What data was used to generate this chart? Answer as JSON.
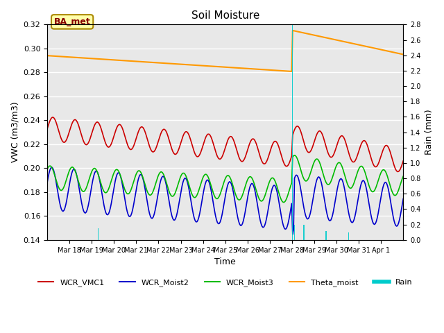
{
  "title": "Soil Moisture",
  "ylabel_left": "VWC (m3/m3)",
  "ylabel_right": "Rain (mm)",
  "xlabel": "Time",
  "annotation": "BA_met",
  "ylim_left": [
    0.14,
    0.32
  ],
  "ylim_right": [
    0.0,
    2.8
  ],
  "yticks_left": [
    0.14,
    0.16,
    0.18,
    0.2,
    0.22,
    0.24,
    0.26,
    0.28,
    0.3,
    0.32
  ],
  "yticks_right": [
    0.0,
    0.2,
    0.4,
    0.6,
    0.8,
    1.0,
    1.2,
    1.4,
    1.6,
    1.8,
    2.0,
    2.2,
    2.4,
    2.6,
    2.8
  ],
  "xtick_positions": [
    1,
    2,
    3,
    4,
    5,
    6,
    7,
    8,
    9,
    10,
    11,
    12,
    13,
    14,
    15
  ],
  "xtick_labels": [
    "Mar 18",
    "Mar 19",
    "Mar 20",
    "Mar 21",
    "Mar 22",
    "Mar 23",
    "Mar 24",
    "Mar 25",
    "Mar 26",
    "Mar 27",
    "Mar 28",
    "Mar 29",
    "Mar 30",
    "Mar 31",
    "Apr 1"
  ],
  "colors": {
    "WCR_VMC1": "#cc0000",
    "WCR_Moist2": "#0000cc",
    "WCR_Moist3": "#00bb00",
    "Theta_moist": "#ff9900",
    "Rain": "#00cccc",
    "background": "#e8e8e8"
  },
  "legend_labels": [
    "WCR_VMC1",
    "WCR_Moist2",
    "WCR_Moist3",
    "Theta_moist",
    "Rain"
  ]
}
